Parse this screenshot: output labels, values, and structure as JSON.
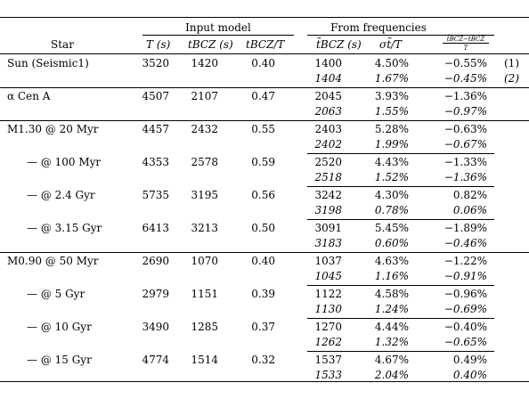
{
  "header": {
    "group_input": "Input model",
    "group_freq": "From frequencies",
    "col_star": "Star",
    "col_T": "T (s)",
    "col_tbcz": "tBCZ (s)",
    "col_ratio": "tBCZ/T",
    "col_tbcz_tilde": "t̃BCZ (s)",
    "col_sigma": "σt̃/T",
    "col_diff_num": "t̃BCZ−tBCZ",
    "col_diff_den": "T"
  },
  "rows": [
    {
      "star": "Sun (Seismic1)",
      "T": "3520",
      "tbcz": "1420",
      "ratio": "0.40",
      "freq": [
        {
          "tbcz": "1400",
          "sigma": "4.50%",
          "diff": "−0.55%",
          "note": "(1)",
          "italic": false
        },
        {
          "tbcz": "1404",
          "sigma": "1.67%",
          "diff": "−0.45%",
          "note": "(2)",
          "italic": true
        }
      ]
    },
    {
      "star": "α Cen A",
      "T": "4507",
      "tbcz": "2107",
      "ratio": "0.47",
      "freq": [
        {
          "tbcz": "2045",
          "sigma": "3.93%",
          "diff": "−1.36%",
          "italic": false
        },
        {
          "tbcz": "2063",
          "sigma": "1.55%",
          "diff": "−0.97%",
          "italic": true
        }
      ]
    },
    {
      "star": "M1.30 @ 20 Myr",
      "T": "4457",
      "tbcz": "2432",
      "ratio": "0.55",
      "freq": [
        {
          "tbcz": "2403",
          "sigma": "5.28%",
          "diff": "−0.63%",
          "italic": false
        },
        {
          "tbcz": "2402",
          "sigma": "1.99%",
          "diff": "−0.67%",
          "italic": true
        }
      ]
    },
    {
      "star": "— @ 100 Myr",
      "T": "4353",
      "tbcz": "2578",
      "ratio": "0.59",
      "freq": [
        {
          "tbcz": "2520",
          "sigma": "4.43%",
          "diff": "−1.33%",
          "italic": false
        },
        {
          "tbcz": "2518",
          "sigma": "1.52%",
          "diff": "−1.36%",
          "italic": true
        }
      ]
    },
    {
      "star": "— @ 2.4 Gyr",
      "T": "5735",
      "tbcz": "3195",
      "ratio": "0.56",
      "freq": [
        {
          "tbcz": "3242",
          "sigma": "4.30%",
          "diff": "0.82%",
          "italic": false
        },
        {
          "tbcz": "3198",
          "sigma": "0.78%",
          "diff": "0.06%",
          "italic": true
        }
      ]
    },
    {
      "star": "— @ 3.15 Gyr",
      "T": "6413",
      "tbcz": "3213",
      "ratio": "0.50",
      "freq": [
        {
          "tbcz": "3091",
          "sigma": "5.45%",
          "diff": "−1.89%",
          "italic": false
        },
        {
          "tbcz": "3183",
          "sigma": "0.60%",
          "diff": "−0.46%",
          "italic": true
        }
      ]
    },
    {
      "star": "M0.90 @ 50 Myr",
      "T": "2690",
      "tbcz": "1070",
      "ratio": "0.40",
      "freq": [
        {
          "tbcz": "1037",
          "sigma": "4.63%",
          "diff": "−1.22%",
          "italic": false
        },
        {
          "tbcz": "1045",
          "sigma": "1.16%",
          "diff": "−0.91%",
          "italic": true
        }
      ]
    },
    {
      "star": "— @ 5 Gyr",
      "T": "2979",
      "tbcz": "1151",
      "ratio": "0.39",
      "freq": [
        {
          "tbcz": "1122",
          "sigma": "4.58%",
          "diff": "−0.96%",
          "italic": false
        },
        {
          "tbcz": "1130",
          "sigma": "1.24%",
          "diff": "−0.69%",
          "italic": true
        }
      ]
    },
    {
      "star": "— @ 10 Gyr",
      "T": "3490",
      "tbcz": "1285",
      "ratio": "0.37",
      "freq": [
        {
          "tbcz": "1270",
          "sigma": "4.44%",
          "diff": "−0.40%",
          "italic": false
        },
        {
          "tbcz": "1262",
          "sigma": "1.32%",
          "diff": "−0.65%",
          "italic": true
        }
      ]
    },
    {
      "star": "— @ 15 Gyr",
      "T": "4774",
      "tbcz": "1514",
      "ratio": "0.32",
      "freq": [
        {
          "tbcz": "1537",
          "sigma": "4.67%",
          "diff": "0.49%",
          "italic": false
        },
        {
          "tbcz": "1533",
          "sigma": "2.04%",
          "diff": "0.40%",
          "italic": true
        }
      ]
    }
  ]
}
